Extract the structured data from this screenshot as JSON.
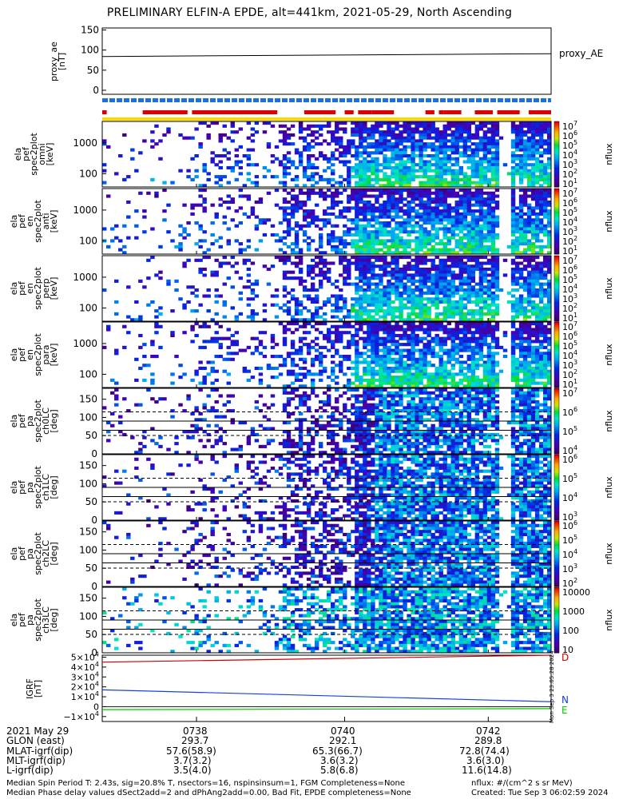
{
  "title": "PRELIMINARY ELFIN-A EPDE, alt=441km, 2021-05-29, North Ascending",
  "colors": {
    "red": "#dd0000",
    "blue": "#1a6fe0",
    "yellow": "#ffd800",
    "igrf_red": "#cc0000",
    "igrf_blue": "#1840e0",
    "igrf_green": "#00cc00"
  },
  "proxy_ae": {
    "ylabel": [
      "proxy_ae",
      "[nT]"
    ],
    "legend": "proxy_AE",
    "yticks": [
      "150",
      "100",
      "50",
      "0"
    ],
    "chart_data": {
      "type": "line",
      "x": [
        0,
        1
      ],
      "y": [
        84,
        91
      ],
      "ylim": [
        -10,
        155
      ]
    }
  },
  "bars": {
    "blue": {
      "segments": [
        [
          0.0,
          1.0
        ]
      ]
    },
    "red": {
      "segments": [
        [
          0.0,
          0.01
        ],
        [
          0.09,
          0.19
        ],
        [
          0.2,
          0.39
        ],
        [
          0.45,
          0.52
        ],
        [
          0.54,
          0.56
        ],
        [
          0.57,
          0.6
        ],
        [
          0.6,
          0.65
        ],
        [
          0.72,
          0.74
        ],
        [
          0.75,
          0.76
        ],
        [
          0.76,
          0.8
        ],
        [
          0.83,
          0.87
        ],
        [
          0.88,
          0.93
        ],
        [
          0.95,
          1.0
        ]
      ]
    },
    "yellow": {
      "segments": [
        [
          0.0,
          1.0
        ]
      ]
    }
  },
  "spec_panels": [
    {
      "ylabel": [
        "ela",
        "pef",
        "spec2plot",
        "omni",
        "[keV]"
      ],
      "yticks": [
        "1000",
        "100"
      ],
      "cbar": [
        "10^7",
        "10^6",
        "10^5",
        "10^4",
        "10^3",
        "10^2",
        "10^1"
      ],
      "cblabel": "nflux",
      "seed": 11
    },
    {
      "ylabel": [
        "ela",
        "pef",
        "en",
        "spec2plot",
        "anti",
        "[keV]"
      ],
      "yticks": [
        "1000",
        "100"
      ],
      "cbar": [
        "10^7",
        "10^6",
        "10^5",
        "10^4",
        "10^3",
        "10^2",
        "10^1"
      ],
      "cblabel": "nflux",
      "seed": 23
    },
    {
      "ylabel": [
        "ela",
        "pef",
        "en",
        "spec2plot",
        "perp",
        "[keV]"
      ],
      "yticks": [
        "1000",
        "100"
      ],
      "cbar": [
        "10^7",
        "10^6",
        "10^5",
        "10^4",
        "10^3",
        "10^2",
        "10^1"
      ],
      "cblabel": "nflux",
      "seed": 37
    },
    {
      "ylabel": [
        "ela",
        "pef",
        "en",
        "spec2plot",
        "para",
        "[keV]"
      ],
      "yticks": [
        "1000",
        "100"
      ],
      "cbar": [
        "10^7",
        "10^6",
        "10^5",
        "10^4",
        "10^3",
        "10^2",
        "10^1"
      ],
      "cblabel": "nflux",
      "seed": 41
    }
  ],
  "pa_panels": [
    {
      "ylabel": [
        "ela",
        "pef",
        "pa",
        "spec2plot",
        "ch0LC",
        "[deg]"
      ],
      "yticks": [
        "150",
        "100",
        "50",
        "0"
      ],
      "cbar": [
        "10^7",
        "10^6",
        "10^5",
        "10^4"
      ],
      "cblabel": "nflux",
      "seed": 53
    },
    {
      "ylabel": [
        "ela",
        "pef",
        "pa",
        "spec2plot",
        "ch1LC",
        "[deg]"
      ],
      "yticks": [
        "150",
        "100",
        "50",
        "0"
      ],
      "cbar": [
        "10^6",
        "10^5",
        "10^4",
        "10^3"
      ],
      "cblabel": "nflux",
      "seed": 67
    },
    {
      "ylabel": [
        "ela",
        "pef",
        "pa",
        "spec2plot",
        "ch2LC",
        "[deg]"
      ],
      "yticks": [
        "150",
        "100",
        "50",
        "0"
      ],
      "cbar": [
        "10^6",
        "10^5",
        "10^4",
        "10^3",
        "10^2"
      ],
      "cblabel": "nflux",
      "seed": 71
    },
    {
      "ylabel": [
        "ela",
        "pef",
        "pa",
        "spec2plot",
        "ch3LC",
        "[deg]"
      ],
      "yticks": [
        "150",
        "100",
        "50",
        "0"
      ],
      "cbar": [
        "10000",
        "1000",
        "100",
        "10"
      ],
      "cblabel": "nflux",
      "seed": 89
    }
  ],
  "igrf": {
    "ylabel": [
      "IGRF",
      "[nT]"
    ],
    "yticks": [
      "5×10^4",
      "4×10^4",
      "3×10^4",
      "2×10^4",
      "1×10^4",
      "0",
      "−1×10^4"
    ],
    "legend": [
      "D",
      "N",
      "E"
    ],
    "chart_data": {
      "type": "line",
      "series": [
        {
          "name": "D",
          "x": [
            0,
            1
          ],
          "y": [
            45000,
            52000
          ]
        },
        {
          "name": "N",
          "x": [
            0,
            1
          ],
          "y": [
            17000,
            5000
          ]
        },
        {
          "name": "E",
          "x": [
            0,
            1
          ],
          "y": [
            -3000,
            -2000
          ]
        }
      ],
      "ylim": [
        -15000,
        52000
      ]
    }
  },
  "side_stamp": "Mon Sep  3 23:05:28 2024",
  "xaxis": {
    "ticks": [
      "0738",
      "0740",
      "0742"
    ]
  },
  "footer_rows": [
    {
      "label": "2021 May 29",
      "v": [
        "0738",
        "0740",
        "0742"
      ]
    },
    {
      "label": "GLON (east)",
      "v": [
        "293.7",
        "292.1",
        "289.8"
      ]
    },
    {
      "label": "MLAT-igrf(dip)",
      "v": [
        "57.6(58.9)",
        "65.3(66.7)",
        "72.8(74.4)"
      ]
    },
    {
      "label": "MLT-igrf(dip)",
      "v": [
        "3.7(3.2)",
        "3.6(3.2)",
        "3.6(3.0)"
      ]
    },
    {
      "label": "L-igrf(dip)",
      "v": [
        "3.5(4.0)",
        "5.8(6.8)",
        "11.6(14.8)"
      ]
    }
  ],
  "footnotes": {
    "l1": "Median Spin Period T: 2.43s, sig=20.8% T, nsectors=16, nspinsinsum=1, FGM Completeness=None",
    "l2": "Median Phase delay values dSect2add=2 and dPhAng2add=0.00, Bad Fit, EPDE completeness=None",
    "r1": "nflux: #/(cm^2 s sr MeV)",
    "r2": "Created: Tue Sep  3 06:02:59 2024"
  }
}
